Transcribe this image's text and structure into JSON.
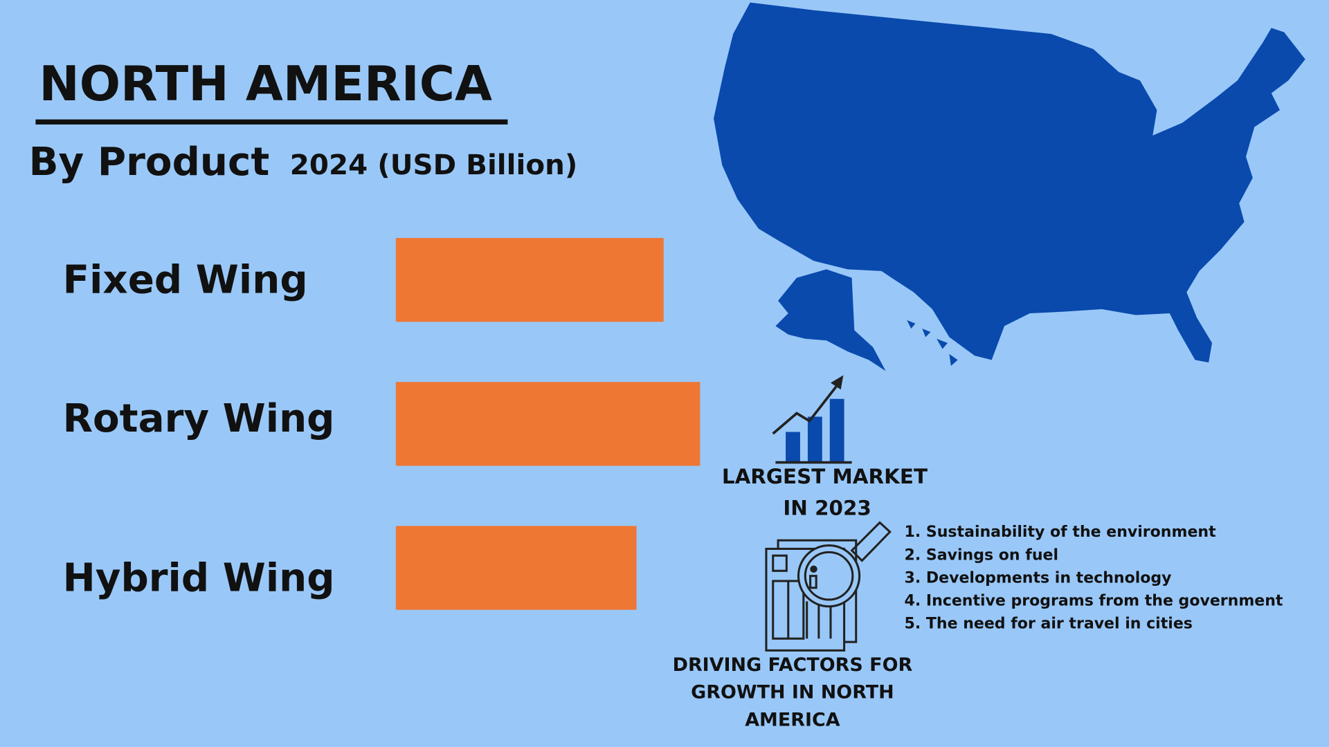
{
  "title": "NORTH AMERICA",
  "chart_data": {
    "type": "bar",
    "title": "By Product",
    "subtitle": "2024 (USD Billion)",
    "categories": [
      "Fixed Wing",
      "Rotary Wing",
      "Hybrid Wing"
    ],
    "values": [
      316,
      359,
      284
    ],
    "color": "#ef7734"
  },
  "highlight": {
    "lines": [
      "LARGEST MARKET",
      "IN 2023"
    ]
  },
  "driving_factors": {
    "items": [
      "1. Sustainability of the environment",
      "2. Savings on fuel",
      "3. Developments in technology",
      "4. Incentive programs from the government",
      "5. The need for air travel in cities"
    ],
    "caption": [
      "DRIVING FACTORS FOR",
      "GROWTH IN NORTH",
      "AMERICA"
    ]
  }
}
